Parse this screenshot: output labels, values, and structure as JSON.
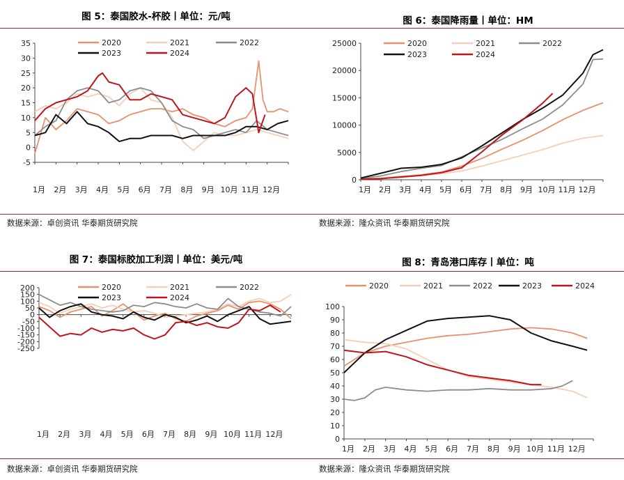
{
  "palette": {
    "2020": "#e8906a",
    "2021": "#f5cdb8",
    "2022": "#8c8c8c",
    "2023": "#111111",
    "2024": "#c0141c"
  },
  "months": [
    "1月",
    "2月",
    "3月",
    "4月",
    "5月",
    "6月",
    "7月",
    "8月",
    "9月",
    "10月",
    "11月",
    "12月"
  ],
  "chart_data": [
    {
      "type": "line",
      "title": "图 5：泰国胶水-杯胶丨单位：元/吨",
      "source": "数据来源：卓创资讯 华泰期货研究院",
      "ylim": [
        -5,
        35
      ],
      "yticks": [
        -5,
        0,
        5,
        10,
        15,
        20,
        25,
        30,
        35
      ],
      "legend": "top",
      "series": [
        {
          "name": "2020",
          "months": [
            0,
            0.5,
            1,
            1.5,
            2,
            2.5,
            3,
            3.5,
            4,
            4.5,
            5,
            5.5,
            6,
            6.5,
            7,
            7.5,
            8,
            8.5,
            9,
            9.5,
            10,
            10.3,
            10.6,
            10.8,
            11,
            11.3,
            11.6,
            12
          ],
          "values": [
            -2,
            10,
            6,
            9,
            13,
            12,
            11,
            8,
            9,
            11,
            12,
            13,
            13,
            12,
            13,
            11,
            10,
            8,
            7,
            9,
            10,
            13,
            29,
            16,
            12,
            12,
            13,
            12
          ]
        },
        {
          "name": "2021",
          "months": [
            0,
            0.5,
            1,
            1.5,
            2,
            2.5,
            3,
            3.5,
            4,
            4.5,
            5,
            5.5,
            6,
            6.5,
            7,
            7.5,
            8,
            8.5,
            9,
            9.5,
            10,
            10.5,
            11,
            11.5,
            12
          ],
          "values": [
            12,
            14,
            13,
            15,
            18,
            17,
            18,
            17,
            14,
            18,
            20,
            16,
            15,
            10,
            2,
            -1,
            2,
            5,
            4,
            4,
            5,
            6,
            5,
            4,
            3
          ]
        },
        {
          "name": "2022",
          "months": [
            0,
            0.5,
            1,
            1.5,
            2,
            2.5,
            3,
            3.5,
            4,
            4.5,
            5,
            5.5,
            6,
            6.5,
            7,
            7.5,
            8,
            8.5,
            9,
            9.5,
            10,
            10.5,
            11,
            11.5,
            12
          ],
          "values": [
            4,
            7,
            9,
            16,
            19,
            20,
            19,
            15,
            16,
            19,
            20,
            19,
            15,
            9,
            7,
            6,
            3,
            4,
            5,
            6,
            5,
            9,
            6,
            5,
            4
          ]
        },
        {
          "name": "2023",
          "months": [
            0,
            0.5,
            1,
            1.5,
            2,
            2.5,
            3,
            3.5,
            4,
            4.5,
            5,
            5.5,
            6,
            6.5,
            7,
            7.5,
            8,
            8.5,
            9,
            9.5,
            10,
            10.5,
            11,
            11.5,
            12
          ],
          "values": [
            4,
            5,
            11,
            8,
            12,
            8,
            7,
            5,
            2,
            3,
            3,
            4,
            4,
            4,
            3,
            4,
            4,
            4,
            4,
            5,
            7,
            7,
            6,
            8,
            9
          ]
        },
        {
          "name": "2024",
          "months": [
            0,
            0.5,
            1,
            1.5,
            2,
            2.5,
            3,
            3.2,
            3.5,
            4,
            4.5,
            5,
            5.5,
            6,
            6.5,
            7,
            7.5,
            8,
            8.5,
            9,
            9.5,
            10,
            10.3,
            10.6,
            10.9
          ],
          "values": [
            9,
            13,
            15,
            16,
            17,
            19,
            24,
            25,
            22,
            21,
            16,
            16,
            18,
            17,
            16,
            11,
            10,
            9,
            8,
            10,
            17,
            20,
            18,
            5,
            11
          ]
        }
      ]
    },
    {
      "type": "line",
      "title": "图 6：泰国降雨量丨单位：HM",
      "source": "数据来源：隆众资讯 华泰期货研究院",
      "ylim": [
        0,
        25000
      ],
      "yticks": [
        0,
        5000,
        10000,
        15000,
        20000,
        25000
      ],
      "legend": "top",
      "series": [
        {
          "name": "2020",
          "months": [
            0,
            1,
            2,
            3,
            4,
            5,
            6,
            7,
            8,
            9,
            10,
            11,
            12
          ],
          "values": [
            100,
            300,
            600,
            900,
            1400,
            2500,
            3900,
            5600,
            7200,
            9000,
            11000,
            12700,
            14100
          ]
        },
        {
          "name": "2021",
          "months": [
            0,
            1,
            2,
            3,
            4,
            5,
            6,
            7,
            8,
            9,
            10,
            11,
            12
          ],
          "values": [
            100,
            300,
            500,
            800,
            1100,
            1600,
            2500,
            3500,
            4500,
            5500,
            6700,
            7600,
            8100
          ]
        },
        {
          "name": "2022",
          "months": [
            0,
            1,
            2,
            3,
            4,
            5,
            6,
            7,
            8,
            9,
            10,
            11,
            11.5,
            12
          ],
          "values": [
            200,
            700,
            1500,
            2100,
            2600,
            4200,
            5800,
            7400,
            9300,
            11100,
            13700,
            17500,
            22000,
            22100
          ]
        },
        {
          "name": "2023",
          "months": [
            0,
            1,
            2,
            3,
            4,
            5,
            6,
            7,
            8,
            9,
            10,
            11,
            11.5,
            12
          ],
          "values": [
            300,
            1200,
            2100,
            2300,
            2800,
            4000,
            6200,
            8600,
            11000,
            13100,
            15500,
            19500,
            22900,
            23800
          ]
        },
        {
          "name": "2024",
          "months": [
            0,
            1,
            2,
            3,
            4,
            5,
            6,
            7,
            8,
            9,
            9.5
          ],
          "values": [
            100,
            200,
            500,
            800,
            1300,
            2200,
            5100,
            8200,
            10900,
            14000,
            15800
          ]
        }
      ]
    },
    {
      "type": "line",
      "title": "图 7：泰国标胶加工利润丨单位：美元/吨",
      "source": "数据来源：卓创资讯 华泰期货研究院",
      "ylim": [
        -250,
        200
      ],
      "yticks": [
        -250,
        -200,
        -150,
        -100,
        -50,
        0,
        50,
        100,
        150,
        200
      ],
      "legend": "top",
      "series": [
        {
          "name": "2020",
          "months": [
            0,
            0.5,
            1,
            1.5,
            2,
            2.5,
            3,
            3.5,
            4,
            4.5,
            5,
            5.5,
            6,
            6.5,
            7,
            7.5,
            8,
            8.5,
            9,
            9.5,
            10,
            10.5,
            11,
            11.5,
            12
          ],
          "values": [
            60,
            30,
            -20,
            20,
            40,
            60,
            -10,
            30,
            80,
            20,
            -40,
            -10,
            10,
            -30,
            -50,
            -10,
            10,
            30,
            70,
            40,
            90,
            100,
            80,
            40,
            -30
          ]
        },
        {
          "name": "2021",
          "months": [
            0,
            0.5,
            1,
            1.5,
            2,
            2.5,
            3,
            3.5,
            4,
            4.5,
            5,
            5.5,
            6,
            6.5,
            7,
            7.5,
            8,
            8.5,
            9,
            9.5,
            10,
            10.5,
            11,
            11.5,
            12
          ],
          "values": [
            90,
            60,
            10,
            40,
            60,
            80,
            50,
            70,
            40,
            20,
            30,
            10,
            -20,
            -10,
            0,
            10,
            20,
            40,
            80,
            60,
            100,
            120,
            90,
            100,
            150
          ]
        },
        {
          "name": "2022",
          "months": [
            0,
            0.5,
            1,
            1.5,
            2,
            2.5,
            3,
            3.5,
            4,
            4.5,
            5,
            5.5,
            6,
            6.5,
            7,
            7.5,
            8,
            8.5,
            9,
            9.5,
            10,
            10.5,
            11,
            11.5,
            12
          ],
          "values": [
            150,
            110,
            70,
            90,
            60,
            40,
            30,
            20,
            30,
            70,
            60,
            90,
            80,
            60,
            50,
            80,
            50,
            40,
            120,
            60,
            40,
            20,
            10,
            -10,
            60
          ]
        },
        {
          "name": "2023",
          "months": [
            0,
            0.5,
            1,
            1.5,
            2,
            2.5,
            3,
            3.5,
            4,
            4.5,
            5,
            5.5,
            6,
            6.5,
            7,
            7.5,
            8,
            8.5,
            9,
            9.5,
            10,
            10.5,
            11,
            11.5,
            12
          ],
          "values": [
            50,
            -20,
            30,
            60,
            80,
            20,
            0,
            -10,
            -30,
            20,
            -20,
            -40,
            0,
            -20,
            -60,
            -40,
            -10,
            -50,
            0,
            30,
            60,
            -30,
            -70,
            -60,
            -50
          ]
        },
        {
          "name": "2024",
          "months": [
            0,
            0.5,
            1,
            1.5,
            2,
            2.5,
            3,
            3.5,
            4,
            4.5,
            5,
            5.5,
            6,
            6.5,
            7,
            7.5,
            8,
            8.5,
            9,
            9.5,
            10,
            10.5,
            11,
            11.5
          ],
          "values": [
            -20,
            -90,
            -160,
            -140,
            -150,
            -100,
            -130,
            -110,
            -120,
            -100,
            -150,
            -180,
            -150,
            -60,
            -50,
            -80,
            -60,
            -90,
            -100,
            -60,
            40,
            30,
            70,
            20
          ]
        }
      ]
    },
    {
      "type": "line",
      "title": "图 8：青岛港口库存丨单位：吨",
      "source": "数据来源：隆众资讯 华泰期货研究院",
      "ylim": [
        0,
        100
      ],
      "yticks": [
        0,
        10,
        20,
        30,
        40,
        50,
        60,
        70,
        80,
        90,
        100
      ],
      "legend": "top",
      "series": [
        {
          "name": "2020",
          "months": [
            0,
            1,
            2,
            3,
            4,
            5,
            6,
            7,
            8,
            9,
            10,
            11,
            11.7
          ],
          "values": [
            55,
            65,
            70,
            73,
            76,
            78,
            79,
            81,
            83,
            84,
            83,
            80,
            76
          ]
        },
        {
          "name": "2021",
          "months": [
            0,
            1,
            2,
            3,
            4,
            5,
            6,
            7,
            8,
            9,
            10,
            11,
            11.7
          ],
          "values": [
            75,
            73,
            72,
            68,
            60,
            52,
            47,
            45,
            43,
            41,
            39,
            36,
            31
          ]
        },
        {
          "name": "2022",
          "months": [
            0,
            0.5,
            1,
            1.5,
            2,
            3,
            4,
            5,
            6,
            7,
            8,
            9,
            10,
            10.5,
            11
          ],
          "values": [
            30,
            29,
            31,
            37,
            39,
            37,
            36,
            37,
            37,
            38,
            37,
            37,
            38,
            40,
            44
          ]
        },
        {
          "name": "2023",
          "months": [
            0,
            1,
            2,
            3,
            4,
            5,
            6,
            7,
            8,
            8.5,
            9,
            10,
            11,
            11.7
          ],
          "values": [
            50,
            65,
            75,
            82,
            89,
            91,
            92,
            93,
            90,
            85,
            80,
            74,
            70,
            67
          ]
        },
        {
          "name": "2024",
          "months": [
            0,
            1,
            2,
            3,
            4,
            5,
            6,
            7,
            8,
            9,
            9.5
          ],
          "values": [
            67,
            65,
            66,
            62,
            56,
            52,
            48,
            46,
            44,
            41,
            41
          ]
        }
      ]
    }
  ]
}
